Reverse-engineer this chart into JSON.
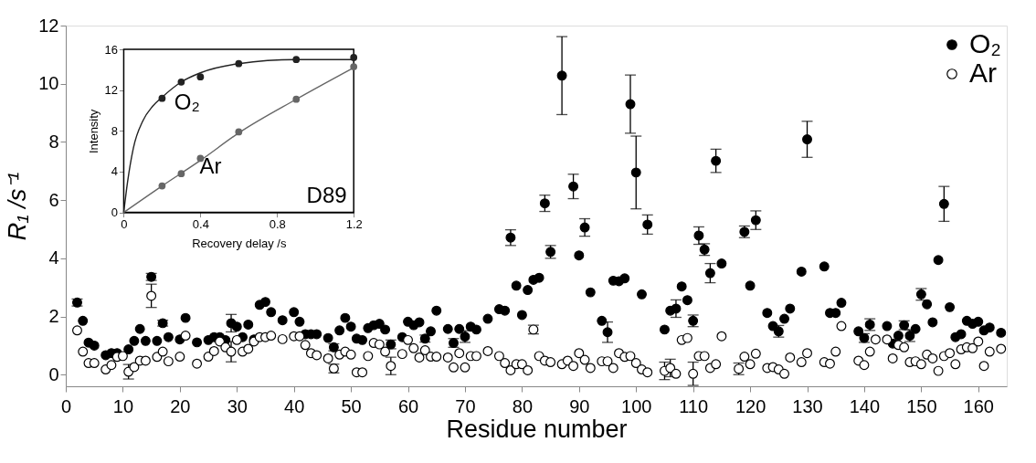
{
  "chart_data": [
    {
      "type": "scatter",
      "xlabel": "Residue number",
      "ylabel": "R₁ /s⁻¹",
      "xlim": [
        0,
        165
      ],
      "ylim": [
        -0.4,
        12
      ],
      "xticks": [
        0,
        10,
        20,
        30,
        40,
        50,
        60,
        70,
        80,
        90,
        100,
        110,
        120,
        130,
        140,
        150,
        160
      ],
      "yticks": [
        0,
        2,
        4,
        6,
        8,
        10,
        12
      ],
      "legend": "top right",
      "grid": false,
      "marker": "circle",
      "series": [
        {
          "name": "O₂",
          "color": "#000000",
          "x": [
            2,
            3,
            4,
            5,
            7,
            8,
            9,
            11,
            12,
            13,
            14,
            15,
            16,
            17,
            18,
            20,
            21,
            23,
            25,
            26,
            27,
            28,
            29,
            30,
            31,
            32,
            33,
            34,
            35,
            36,
            38,
            40,
            41,
            42,
            43,
            44,
            46,
            47,
            48,
            49,
            50,
            51,
            52,
            53,
            54,
            55,
            56,
            57,
            59,
            60,
            61,
            62,
            63,
            64,
            65,
            67,
            68,
            69,
            70,
            71,
            72,
            74,
            76,
            77,
            78,
            79,
            80,
            81,
            82,
            83,
            84,
            85,
            87,
            89,
            90,
            91,
            92,
            94,
            95,
            96,
            97,
            98,
            99,
            100,
            101,
            102,
            105,
            106,
            107,
            108,
            109,
            110,
            111,
            112,
            113,
            114,
            115,
            119,
            120,
            121,
            123,
            124,
            125,
            126,
            127,
            129,
            130,
            133,
            134,
            135,
            136,
            139,
            140,
            141,
            144,
            145,
            146,
            147,
            148,
            149,
            150,
            151,
            152,
            153,
            154,
            155,
            156,
            157,
            158,
            159,
            160,
            161,
            162,
            164
          ],
          "values": [
            2.48,
            1.85,
            1.1,
            1.0,
            0.67,
            0.74,
            0.74,
            0.87,
            1.16,
            1.57,
            1.16,
            3.36,
            1.16,
            1.77,
            1.29,
            1.21,
            1.95,
            1.11,
            1.19,
            1.29,
            1.29,
            1.19,
            1.77,
            1.65,
            1.29,
            1.72,
            1.21,
            2.4,
            2.5,
            2.15,
            1.87,
            2.15,
            1.82,
            1.39,
            1.39,
            1.39,
            1.26,
            0.94,
            1.52,
            1.95,
            1.65,
            1.24,
            1.19,
            1.6,
            1.7,
            1.75,
            1.55,
            1.04,
            1.29,
            1.82,
            1.7,
            1.8,
            1.24,
            1.49,
            2.2,
            1.57,
            1.09,
            1.57,
            1.31,
            1.65,
            1.55,
            1.92,
            2.25,
            2.2,
            4.71,
            3.06,
            2.05,
            2.91,
            3.26,
            3.33,
            5.89,
            4.22,
            10.28,
            6.47,
            4.1,
            5.06,
            2.83,
            1.85,
            1.46,
            3.23,
            3.21,
            3.31,
            9.3,
            6.95,
            2.76,
            5.16,
            1.55,
            2.2,
            2.27,
            3.03,
            2.56,
            1.85,
            4.78,
            4.3,
            3.49,
            7.35,
            3.82,
            4.91,
            3.06,
            5.31,
            2.12,
            1.67,
            1.49,
            1.92,
            2.27,
            3.54,
            8.09,
            3.72,
            2.12,
            2.12,
            2.47,
            1.49,
            1.26,
            1.72,
            1.67,
            1.07,
            1.34,
            1.7,
            1.34,
            1.57,
            2.76,
            2.42,
            1.8,
            3.94,
            5.87,
            2.32,
            1.29,
            1.39,
            1.85,
            1.75,
            1.82,
            1.52,
            1.62,
            1.44
          ],
          "errors": [
            0.12,
            null,
            null,
            null,
            null,
            null,
            null,
            null,
            null,
            null,
            null,
            0.12,
            null,
            0.1,
            null,
            null,
            null,
            null,
            null,
            null,
            null,
            null,
            0.3,
            null,
            null,
            null,
            null,
            null,
            null,
            null,
            null,
            null,
            null,
            null,
            null,
            null,
            null,
            0.12,
            null,
            null,
            null,
            null,
            null,
            null,
            null,
            null,
            null,
            0.15,
            null,
            null,
            null,
            null,
            0.12,
            null,
            null,
            null,
            0.15,
            null,
            0.2,
            null,
            null,
            null,
            null,
            null,
            0.27,
            null,
            null,
            null,
            null,
            null,
            0.28,
            0.22,
            1.34,
            0.42,
            null,
            0.3,
            null,
            null,
            0.35,
            null,
            null,
            null,
            1.0,
            1.25,
            null,
            0.33,
            null,
            null,
            0.3,
            null,
            null,
            0.2,
            0.3,
            0.2,
            0.33,
            0.4,
            null,
            0.2,
            null,
            0.32,
            null,
            null,
            0.2,
            null,
            null,
            null,
            0.62,
            null,
            null,
            null,
            null,
            null,
            0.15,
            0.2,
            null,
            null,
            null,
            0.15,
            0.2,
            null,
            0.2,
            null,
            null,
            null,
            0.6,
            null,
            null,
            null,
            null,
            null,
            null,
            null,
            null,
            null
          ]
        },
        {
          "name": "Ar",
          "color": "#ffffff",
          "x": [
            2,
            3,
            4,
            5,
            7,
            8,
            9,
            10,
            11,
            12,
            13,
            14,
            15,
            16,
            17,
            18,
            20,
            21,
            23,
            25,
            26,
            27,
            28,
            29,
            30,
            31,
            32,
            33,
            34,
            35,
            36,
            38,
            40,
            41,
            42,
            43,
            44,
            46,
            47,
            48,
            49,
            50,
            51,
            52,
            53,
            54,
            55,
            56,
            57,
            59,
            60,
            61,
            62,
            63,
            64,
            65,
            67,
            68,
            69,
            70,
            71,
            72,
            74,
            76,
            77,
            78,
            79,
            80,
            81,
            82,
            83,
            84,
            85,
            87,
            88,
            89,
            90,
            91,
            92,
            94,
            95,
            96,
            97,
            98,
            99,
            100,
            101,
            102,
            105,
            106,
            107,
            108,
            109,
            110,
            111,
            112,
            113,
            114,
            115,
            118,
            119,
            120,
            121,
            123,
            124,
            125,
            126,
            127,
            129,
            130,
            133,
            134,
            135,
            136,
            139,
            140,
            141,
            142,
            144,
            145,
            146,
            147,
            148,
            149,
            150,
            151,
            152,
            153,
            154,
            155,
            156,
            157,
            158,
            159,
            160,
            161,
            162,
            164
          ],
          "values": [
            1.52,
            0.79,
            0.4,
            0.4,
            0.18,
            0.33,
            0.61,
            0.64,
            0.1,
            0.26,
            0.48,
            0.48,
            2.71,
            0.61,
            0.79,
            0.46,
            0.62,
            1.34,
            0.38,
            0.62,
            0.81,
            1.14,
            0.94,
            0.79,
            1.19,
            0.79,
            0.89,
            1.14,
            1.29,
            1.29,
            1.34,
            1.22,
            1.32,
            1.32,
            1.02,
            0.74,
            0.67,
            0.56,
            0.21,
            0.69,
            0.79,
            0.69,
            0.08,
            0.08,
            0.64,
            1.09,
            1.04,
            0.79,
            0.3,
            0.71,
            1.19,
            0.91,
            0.59,
            0.84,
            0.62,
            0.62,
            0.59,
            0.25,
            0.74,
            0.25,
            0.64,
            0.64,
            0.81,
            0.64,
            0.4,
            0.15,
            0.36,
            0.36,
            0.15,
            1.55,
            0.64,
            0.48,
            0.43,
            0.36,
            0.48,
            0.3,
            0.74,
            0.51,
            0.23,
            0.46,
            0.46,
            0.23,
            0.74,
            0.61,
            0.64,
            0.4,
            0.18,
            0.08,
            0.13,
            0.23,
            0.03,
            1.19,
            1.26,
            0.03,
            0.64,
            0.64,
            0.23,
            0.36,
            1.32,
            0.2,
            0.62,
            0.36,
            0.72,
            0.23,
            0.26,
            0.18,
            0.03,
            0.59,
            0.43,
            0.74,
            0.43,
            0.38,
            0.79,
            1.67,
            0.48,
            0.33,
            0.79,
            1.21,
            1.21,
            0.56,
            1.02,
            0.94,
            0.43,
            0.46,
            0.36,
            0.69,
            0.56,
            0.13,
            0.64,
            0.74,
            0.36,
            0.87,
            0.94,
            0.91,
            1.14,
            0.3,
            0.79,
            0.89
          ],
          "errors": [
            null,
            null,
            null,
            null,
            null,
            null,
            null,
            null,
            0.25,
            null,
            null,
            null,
            0.4,
            null,
            null,
            null,
            null,
            null,
            null,
            null,
            null,
            null,
            null,
            0.35,
            null,
            null,
            null,
            null,
            null,
            null,
            null,
            null,
            null,
            null,
            null,
            null,
            null,
            null,
            0.15,
            null,
            null,
            null,
            null,
            null,
            null,
            null,
            null,
            null,
            0.3,
            null,
            null,
            null,
            null,
            null,
            null,
            null,
            null,
            null,
            null,
            null,
            null,
            null,
            null,
            null,
            null,
            null,
            null,
            null,
            null,
            0.15,
            null,
            null,
            null,
            null,
            null,
            null,
            null,
            null,
            null,
            null,
            null,
            null,
            null,
            null,
            null,
            null,
            null,
            null,
            0.3,
            0.3,
            null,
            null,
            null,
            0.4,
            null,
            null,
            null,
            null,
            null,
            0.2,
            null,
            null,
            null,
            null,
            null,
            null,
            null,
            null,
            null,
            null,
            null,
            null,
            null,
            null,
            null,
            null,
            null,
            null,
            null,
            null,
            null,
            null,
            null,
            null,
            null,
            null,
            null,
            null,
            null,
            null,
            null,
            null,
            null,
            null,
            null,
            null,
            null,
            null
          ]
        }
      ]
    },
    {
      "type": "scatter",
      "xlabel": "Recovery delay /s",
      "ylabel": "Intensity",
      "xlim": [
        0,
        1.2
      ],
      "ylim": [
        0,
        16
      ],
      "xticks": [
        0,
        0.4,
        0.8,
        1.2
      ],
      "yticks": [
        0,
        4,
        8,
        12,
        16
      ],
      "grid": false,
      "marker": "circle",
      "annotations": [
        "O₂",
        "Ar",
        "D89"
      ],
      "series": [
        {
          "type": "line",
          "marker": "none",
          "color": "#222222",
          "x": [
            0,
            0.02,
            0.05,
            0.1,
            0.15,
            0.2,
            0.3,
            0.4,
            0.6,
            0.9,
            1.2
          ],
          "values": [
            0,
            3.0,
            6.3,
            9.0,
            10.4,
            11.3,
            12.8,
            13.7,
            14.6,
            15.0,
            15.0
          ]
        },
        {
          "type": "line",
          "marker": "none",
          "color": "#666666",
          "x": [
            0,
            0.2,
            0.4,
            0.6,
            0.9,
            1.2
          ],
          "values": [
            0,
            2.6,
            5.1,
            7.8,
            11.1,
            14.2
          ]
        },
        {
          "color": "#222222",
          "x": [
            0.2,
            0.3,
            0.4,
            0.6,
            0.9,
            1.2
          ],
          "values": [
            11.2,
            12.8,
            13.3,
            14.6,
            15.0,
            15.2
          ]
        },
        {
          "color": "#666666",
          "x": [
            0.2,
            0.3,
            0.4,
            0.6,
            0.9,
            1.2
          ],
          "values": [
            2.6,
            3.8,
            5.3,
            7.9,
            11.1,
            14.3
          ]
        }
      ]
    }
  ]
}
